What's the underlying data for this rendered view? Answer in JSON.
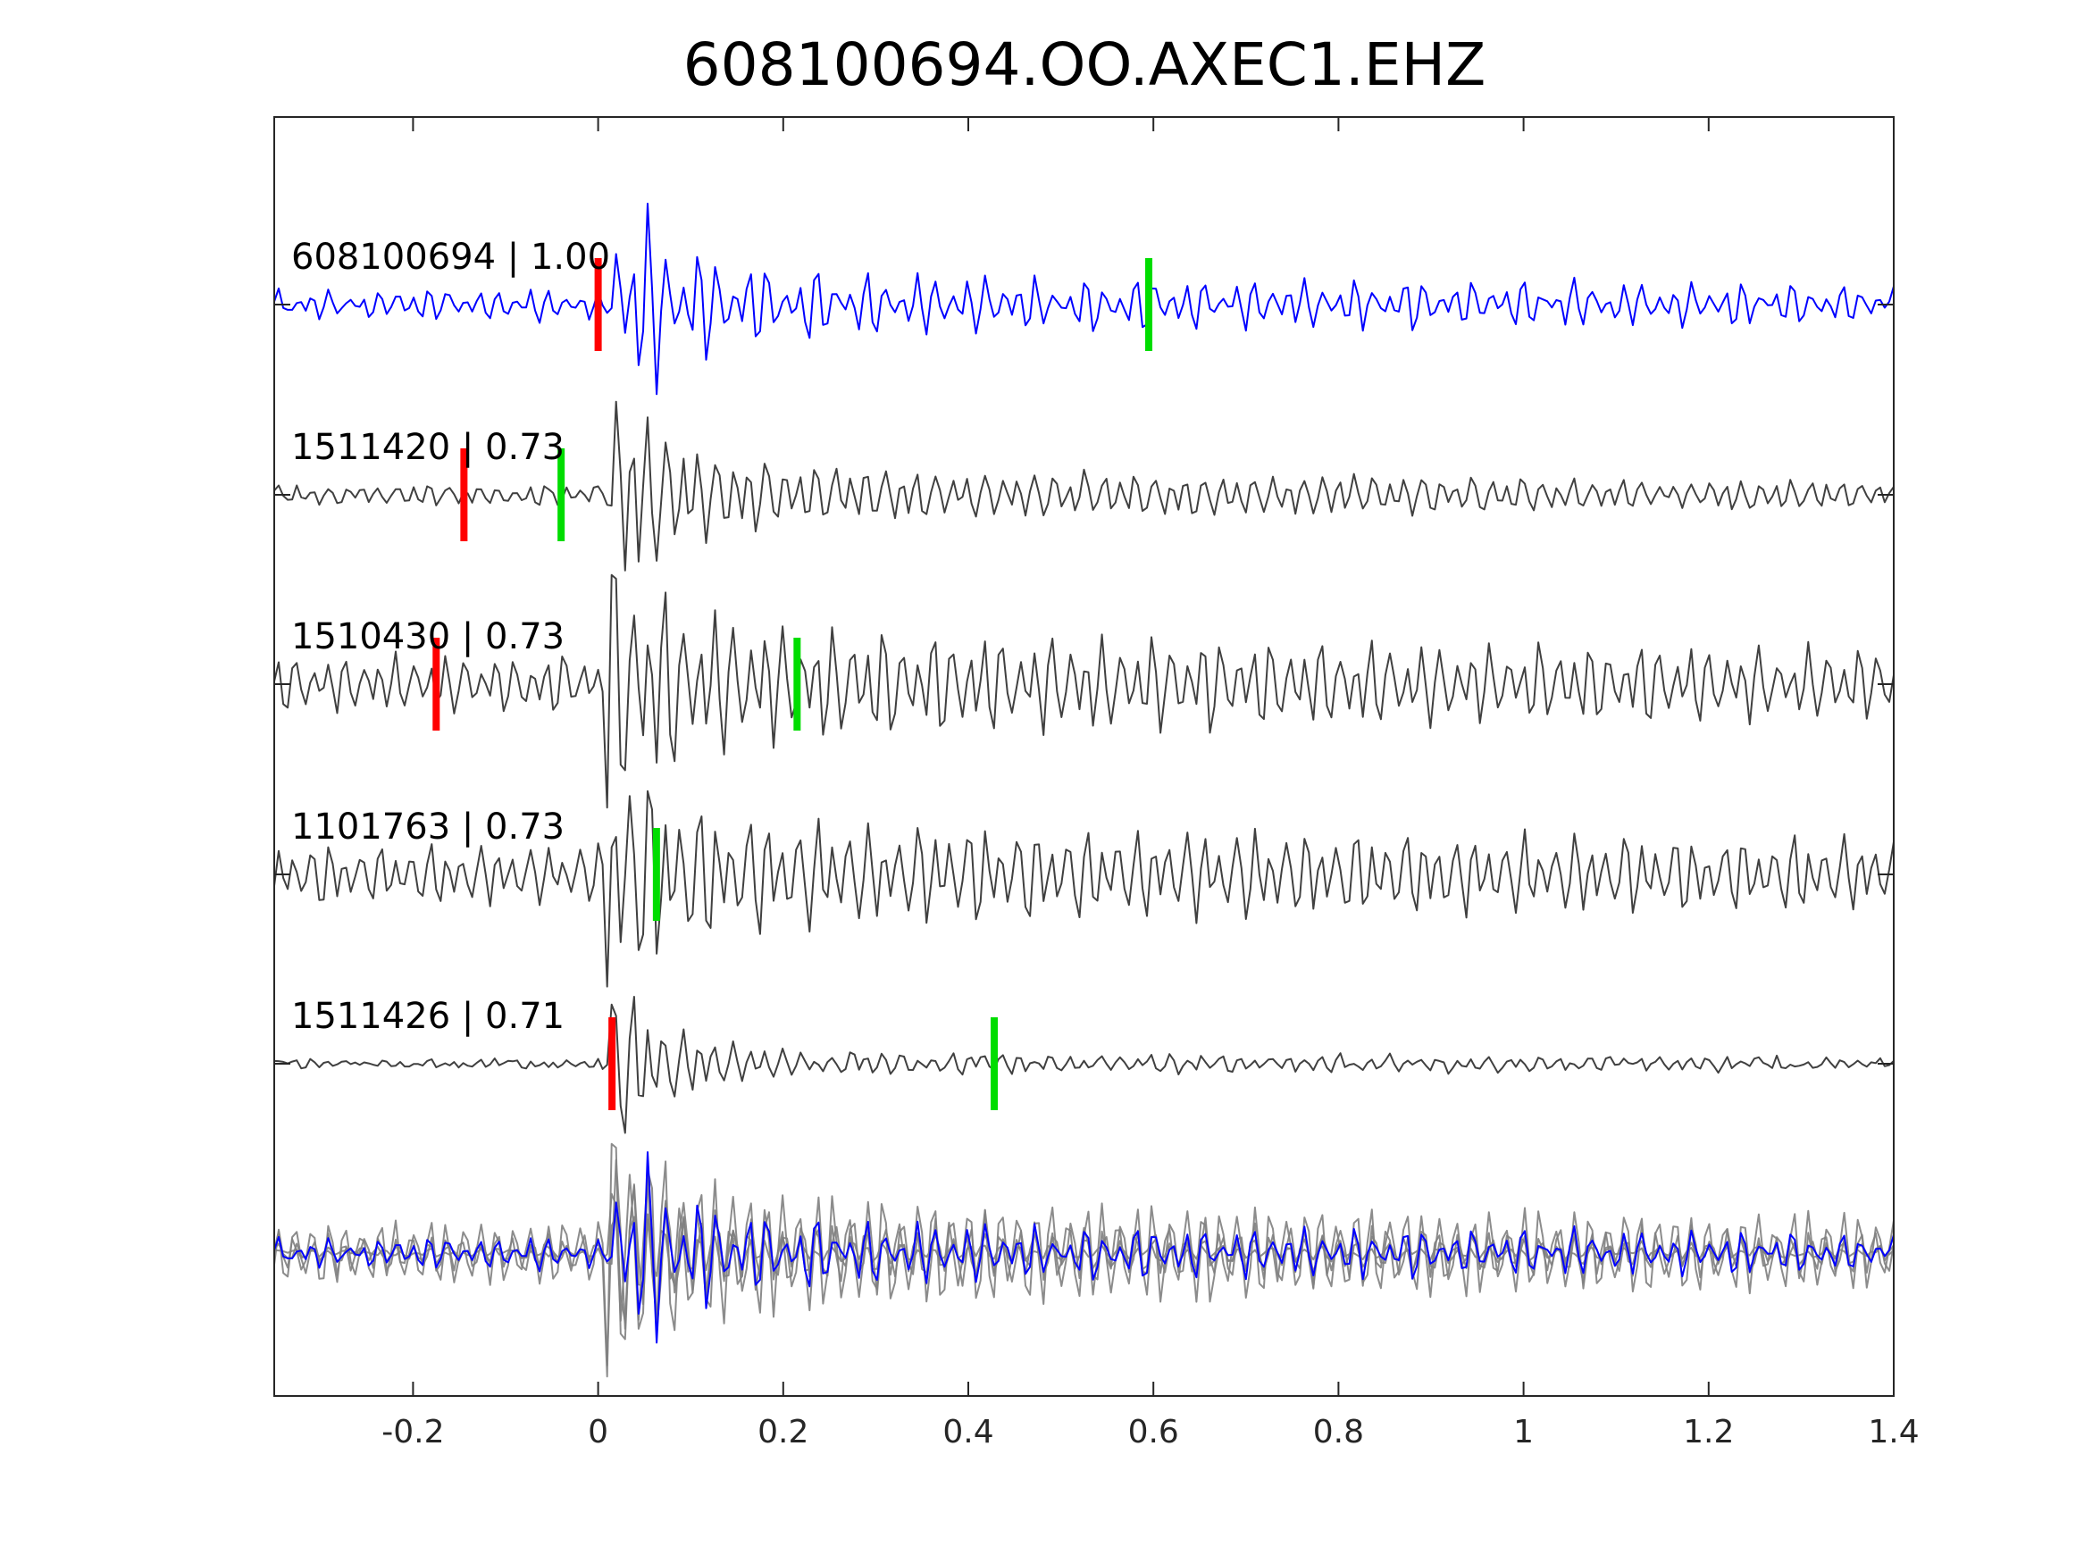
{
  "chart_data": {
    "type": "line",
    "title": "608100694.OO.AXEC1.EHZ",
    "xlabel": "",
    "ylabel": "",
    "xlim": [
      -0.35,
      1.4
    ],
    "xticks": [
      -0.2,
      0,
      0.2,
      0.4,
      0.6,
      0.8,
      1,
      1.2,
      1.4
    ],
    "xtick_labels": [
      "-0.2",
      "0",
      "0.2",
      "0.4",
      "0.6",
      "0.8",
      "1",
      "1.2",
      "1.4"
    ],
    "grid": false,
    "colors": {
      "reference": "#0000ff",
      "match": "#404040",
      "stack": "#808080",
      "p_pick": "#ff0000",
      "s_pick": "#00dd00",
      "axes": "#262626"
    },
    "traces": [
      {
        "label": "608100694 | 1.00",
        "event_id": "608100694",
        "correlation": 1.0,
        "role": "reference",
        "p_pick": 0.0,
        "s_pick": 0.595,
        "onset": 0.025,
        "amplitude": 1.0,
        "noise": 0.16,
        "coda": 0.22,
        "seed": 11
      },
      {
        "label": "1511420 | 0.73",
        "event_id": "1511420",
        "correlation": 0.73,
        "role": "match",
        "p_pick": -0.145,
        "s_pick": -0.04,
        "onset": 0.02,
        "amplitude": 1.0,
        "noise": 0.1,
        "coda": 0.28,
        "seed": 23
      },
      {
        "label": "1510430 | 0.73",
        "event_id": "1510430",
        "correlation": 0.73,
        "role": "match",
        "p_pick": -0.175,
        "s_pick": 0.215,
        "onset": 0.015,
        "amplitude": 0.95,
        "noise": 0.32,
        "coda": 0.4,
        "seed": 37
      },
      {
        "label": "1101763 | 0.73",
        "event_id": "1101763",
        "correlation": 0.73,
        "role": "match",
        "p_pick": null,
        "s_pick": 0.063,
        "onset": 0.015,
        "amplitude": 1.0,
        "noise": 0.35,
        "coda": 0.3,
        "seed": 53
      },
      {
        "label": "1511426 | 0.71",
        "event_id": "1511426",
        "correlation": 0.71,
        "role": "match",
        "p_pick": 0.015,
        "s_pick": 0.428,
        "onset": 0.02,
        "amplitude": 0.9,
        "noise": 0.03,
        "coda": 0.12,
        "seed": 71
      }
    ],
    "stack": {
      "description_shown": false,
      "series_count": 5
    }
  }
}
